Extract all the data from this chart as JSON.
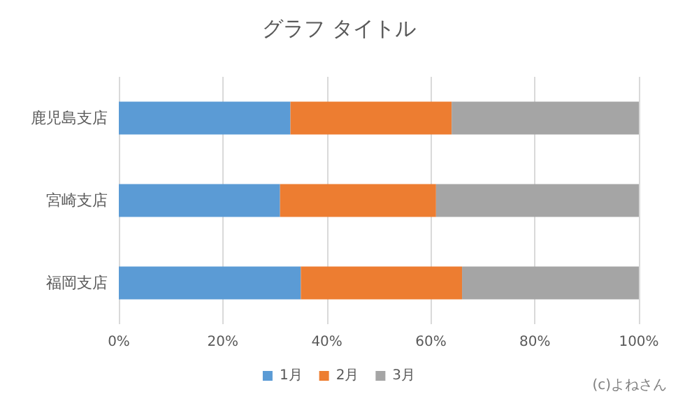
{
  "chart_data": {
    "type": "bar",
    "orientation": "horizontal",
    "stacked": true,
    "title": "グラフ タイトル",
    "categories": [
      "鹿児島支店",
      "宮崎支店",
      "福岡支店"
    ],
    "series": [
      {
        "name": "1月",
        "color": "#5b9bd5",
        "values": [
          33,
          31,
          35
        ]
      },
      {
        "name": "2月",
        "color": "#ed7d31",
        "values": [
          31,
          30,
          31
        ]
      },
      {
        "name": "3月",
        "color": "#a5a5a5",
        "values": [
          36,
          39,
          34
        ]
      }
    ],
    "xlim": [
      0,
      100
    ],
    "xticks": [
      {
        "value": 0,
        "label": "0%"
      },
      {
        "value": 20,
        "label": "20%"
      },
      {
        "value": 40,
        "label": "40%"
      },
      {
        "value": 60,
        "label": "60%"
      },
      {
        "value": 80,
        "label": "80%"
      },
      {
        "value": 100,
        "label": "100%"
      }
    ],
    "grid": "x",
    "legend": "bottom",
    "annotations": [
      "(c)よねさん"
    ]
  }
}
